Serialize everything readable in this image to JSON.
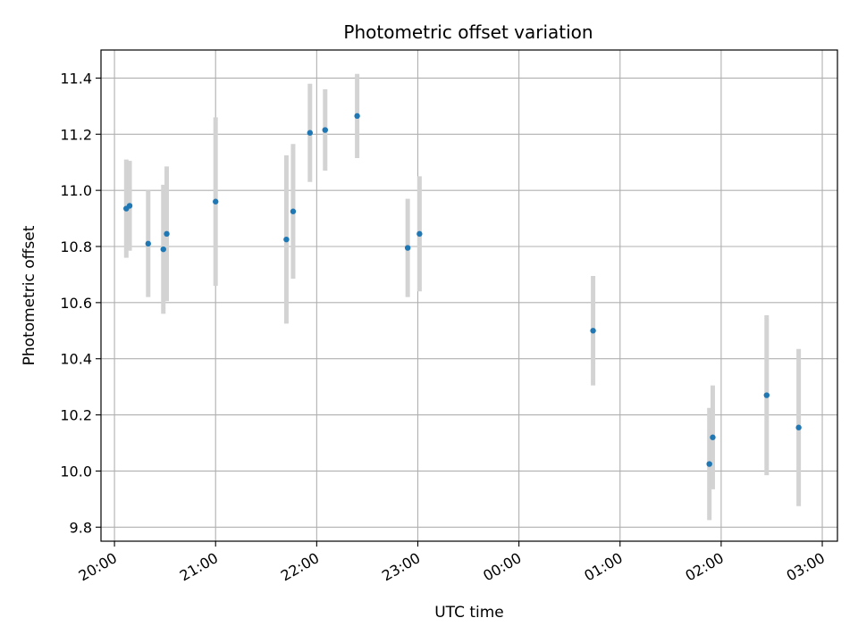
{
  "chart_data": {
    "type": "scatter",
    "title": "Photometric offset variation",
    "xlabel": "UTC time",
    "ylabel": "Photometric offset",
    "x_axis": {
      "type": "time",
      "range": [
        "19:52",
        "03:09"
      ],
      "ticks": [
        "20:00",
        "21:00",
        "22:00",
        "23:00",
        "00:00",
        "01:00",
        "02:00",
        "03:00"
      ]
    },
    "y_axis": {
      "range": [
        9.75,
        11.5
      ],
      "ticks": [
        "9.8",
        "10.0",
        "10.2",
        "10.4",
        "10.6",
        "10.8",
        "11.0",
        "11.2",
        "11.4"
      ]
    },
    "grid": true,
    "series": [
      {
        "marker_color": "#1f77b4",
        "error_bar_color": "#d3d3d3",
        "points": [
          {
            "x": "20:07",
            "y": 10.935,
            "yerr": 0.175
          },
          {
            "x": "20:09",
            "y": 10.945,
            "yerr": 0.16
          },
          {
            "x": "20:20",
            "y": 10.81,
            "yerr": 0.19
          },
          {
            "x": "20:29",
            "y": 10.79,
            "yerr": 0.23
          },
          {
            "x": "20:31",
            "y": 10.845,
            "yerr": 0.24
          },
          {
            "x": "21:00",
            "y": 10.96,
            "yerr": 0.3
          },
          {
            "x": "21:42",
            "y": 10.825,
            "yerr": 0.3
          },
          {
            "x": "21:46",
            "y": 10.925,
            "yerr": 0.24
          },
          {
            "x": "21:56",
            "y": 11.205,
            "yerr": 0.175
          },
          {
            "x": "22:05",
            "y": 11.215,
            "yerr": 0.145
          },
          {
            "x": "22:24",
            "y": 11.265,
            "yerr": 0.15
          },
          {
            "x": "22:54",
            "y": 10.795,
            "yerr": 0.175
          },
          {
            "x": "23:01",
            "y": 10.845,
            "yerr": 0.205
          },
          {
            "x": "00:44",
            "y": 10.5,
            "yerr": 0.195
          },
          {
            "x": "01:53",
            "y": 10.025,
            "yerr": 0.2
          },
          {
            "x": "01:55",
            "y": 10.12,
            "yerr": 0.185
          },
          {
            "x": "02:27",
            "y": 10.27,
            "yerr": 0.285
          },
          {
            "x": "02:46",
            "y": 10.155,
            "yerr": 0.28
          }
        ]
      }
    ]
  }
}
